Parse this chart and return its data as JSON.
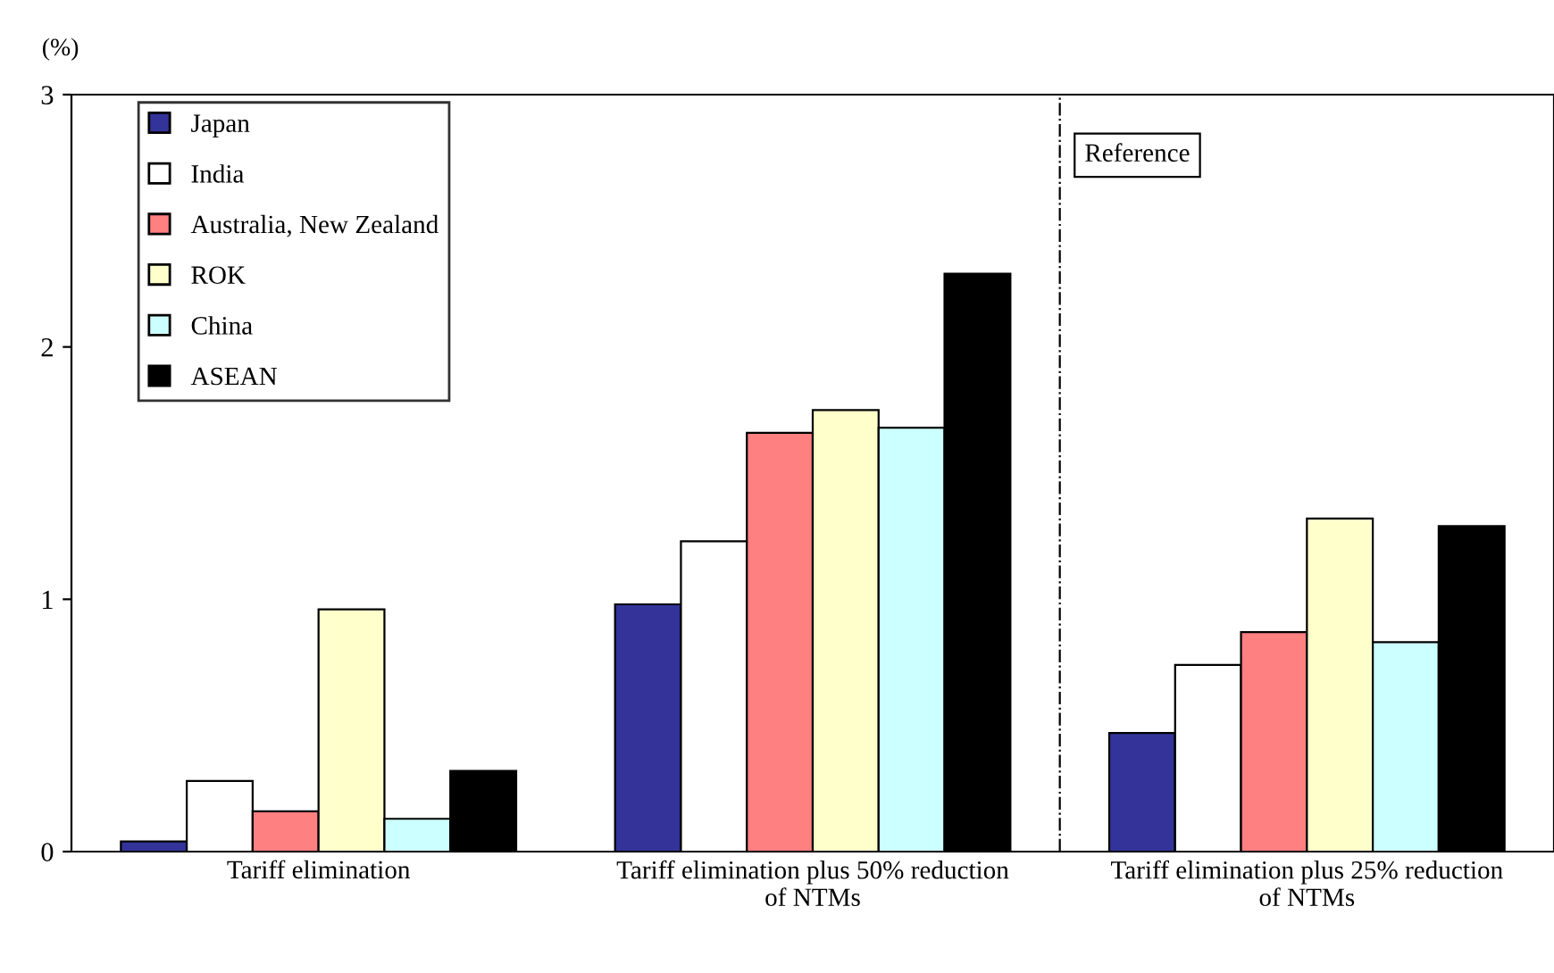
{
  "chart_data": {
    "type": "bar",
    "ylabel": "(%)",
    "categories": [
      "Tariff elimination",
      "Tariff elimination plus 50% reduction\nof NTMs",
      "Tariff elimination plus 25% reduction\nof NTMs"
    ],
    "series": [
      {
        "name": "Japan",
        "color": "#333399",
        "values": [
          0.04,
          0.98,
          0.47
        ]
      },
      {
        "name": "India",
        "color": "#ffffff",
        "values": [
          0.28,
          1.23,
          0.74
        ]
      },
      {
        "name": "Australia, New Zealand",
        "color": "#ff8080",
        "values": [
          0.16,
          1.66,
          0.87
        ]
      },
      {
        "name": "ROK",
        "color": "#ffffcc",
        "values": [
          0.96,
          1.75,
          1.32
        ]
      },
      {
        "name": "China",
        "color": "#ccffff",
        "values": [
          0.13,
          1.68,
          0.83
        ]
      },
      {
        "name": "ASEAN",
        "color": "#000000",
        "values": [
          0.32,
          2.29,
          1.29
        ]
      }
    ],
    "ylim": [
      0,
      3
    ],
    "yticks": [
      0,
      1,
      2,
      3
    ],
    "grid": false,
    "legend": "top left",
    "annotations": [
      "Reference"
    ]
  }
}
